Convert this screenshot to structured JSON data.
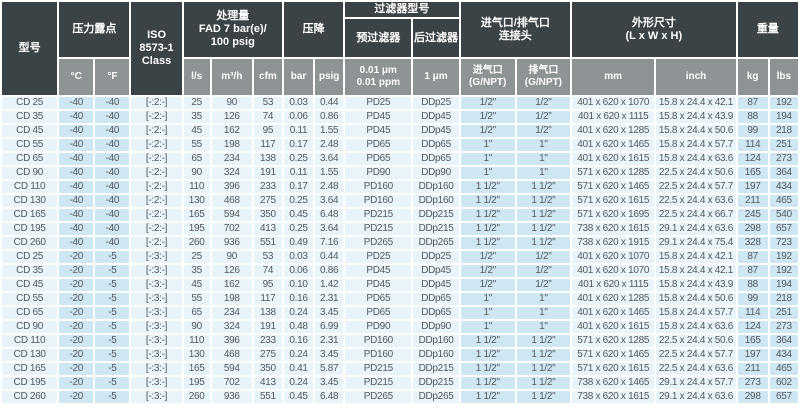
{
  "header": {
    "model": "型号",
    "dew_point": {
      "title": "压力露点",
      "c": "°C",
      "f": "°F"
    },
    "iso_class": "ISO\n8573-1\nClass",
    "capacity": {
      "title": "处理量\nFAD 7 bar(e)/\n100 psig",
      "ls": "l/s",
      "m3h": "m³/h",
      "cfm": "cfm"
    },
    "pressure_drop": {
      "title": "压降",
      "bar": "bar",
      "psig": "psig"
    },
    "filter": {
      "title": "过滤器型号",
      "pre": "预过滤器",
      "after": "后过滤器",
      "pre_spec": "0.01 μm\n0.01 ppm",
      "after_spec": "1 μm"
    },
    "connections": {
      "title": "进气口/排气口\n连接头",
      "inlet": "进气口\n(G/NPT)",
      "outlet": "排气口\n(G/NPT)"
    },
    "dimensions": {
      "title": "外形尺寸\n(L x W x H)",
      "mm": "mm",
      "inch": "inch"
    },
    "weight": {
      "title": "重量",
      "kg": "kg",
      "lbs": "lbs"
    }
  },
  "column_keys": [
    "model",
    "dew-c",
    "dew-f",
    "iso-class",
    "ls",
    "m3h",
    "cfm",
    "bar",
    "psig",
    "prefilter",
    "afterfilter",
    "inlet",
    "outlet",
    "mm",
    "inch",
    "kg",
    "lbs"
  ],
  "colors": {
    "header_dark": "#3b4347",
    "header_gray": "#8e9396",
    "cell_pale": "#e8f3fa",
    "cell_blue": "#cfe7f2",
    "body_text": "#55595c"
  },
  "rows": [
    [
      "CD 25",
      "-40",
      "-40",
      "[-:2:-]",
      "25",
      "90",
      "53",
      "0.03",
      "0.44",
      "PD25",
      "DDp25",
      "1/2\"",
      "1/2\"",
      "401 x 620 x 1070",
      "15.8 x 24.4 x 42.1",
      "87",
      "192"
    ],
    [
      "CD 35",
      "-40",
      "-40",
      "[-:2:-]",
      "35",
      "126",
      "74",
      "0.06",
      "0.86",
      "PD45",
      "DDp45",
      "1/2\"",
      "1/2\"",
      "401 x 620 x 1115",
      "15.8 x 24.4 x 43.9",
      "88",
      "194"
    ],
    [
      "CD 45",
      "-40",
      "-40",
      "[-:2:-]",
      "45",
      "162",
      "95",
      "0.11",
      "1.55",
      "PD45",
      "DDp45",
      "1/2\"",
      "1/2\"",
      "401 x 620 x 1285",
      "15.8 x 24.4 x 50.6",
      "99",
      "218"
    ],
    [
      "CD 55",
      "-40",
      "-40",
      "[-:2:-]",
      "55",
      "198",
      "117",
      "0.17",
      "2.48",
      "PD65",
      "DDp65",
      "1\"",
      "1\"",
      "401 x 620 x 1465",
      "15.8 x 24.4 x 57.7",
      "114",
      "251"
    ],
    [
      "CD 65",
      "-40",
      "-40",
      "[-:2:-]",
      "65",
      "234",
      "138",
      "0.25",
      "3.64",
      "PD65",
      "DDp65",
      "1\"",
      "1\"",
      "401 x 620 x 1615",
      "15.8 x 24.4 x 63.6",
      "124",
      "273"
    ],
    [
      "CD 90",
      "-40",
      "-40",
      "[-:2:-]",
      "90",
      "324",
      "191",
      "0.11",
      "1.55",
      "PD90",
      "DDp90",
      "1\"",
      "1\"",
      "571 x 620 x 1285",
      "22.5 x 24.4 x 50.6",
      "165",
      "364"
    ],
    [
      "CD 110",
      "-40",
      "-40",
      "[-:2:-]",
      "110",
      "396",
      "233",
      "0.17",
      "2.48",
      "PD160",
      "DDp160",
      "1 1/2\"",
      "1 1/2\"",
      "571 x 620 x 1465",
      "22.5 x 24.4 x 57.7",
      "197",
      "434"
    ],
    [
      "CD 130",
      "-40",
      "-40",
      "[-:2:-]",
      "130",
      "468",
      "275",
      "0.25",
      "3.64",
      "PD160",
      "DDp160",
      "1 1/2\"",
      "1 1/2\"",
      "571 x 620 x 1615",
      "22.5 x 24.4 x 63.6",
      "211",
      "465"
    ],
    [
      "CD 165",
      "-40",
      "-40",
      "[-:2:-]",
      "165",
      "594",
      "350",
      "0.45",
      "6.48",
      "PD215",
      "DDp215",
      "1 1/2\"",
      "1 1/2\"",
      "571 x 620 x 1695",
      "22.5 x 24.4 x 66.7",
      "245",
      "540"
    ],
    [
      "CD 195",
      "-40",
      "-40",
      "[-:2:-]",
      "195",
      "702",
      "413",
      "0.25",
      "3.64",
      "PD215",
      "DDp215",
      "1 1/2\"",
      "1 1/2\"",
      "738 x 620 x 1615",
      "29.1 x 24.4 x 63.6",
      "298",
      "657"
    ],
    [
      "CD 260",
      "-40",
      "-40",
      "[-:2:-]",
      "260",
      "936",
      "551",
      "0.49",
      "7.16",
      "PD265",
      "DDp265",
      "1 1/2\"",
      "1 1/2\"",
      "738 x 620 x 1915",
      "29.1 x 24.4 x 75.4",
      "328",
      "723"
    ],
    [
      "CD 25",
      "-20",
      "-5",
      "[-:3:-]",
      "25",
      "90",
      "53",
      "0.03",
      "0.44",
      "PD25",
      "DDp25",
      "1/2\"",
      "1/2\"",
      "401 x 620 x 1070",
      "15.8 x 24.4 x 42.1",
      "87",
      "192"
    ],
    [
      "CD 35",
      "-20",
      "-5",
      "[-:3:-]",
      "35",
      "126",
      "74",
      "0.06",
      "0.86",
      "PD45",
      "DDp45",
      "1/2\"",
      "1/2\"",
      "401 x 620 x 1070",
      "15.8 x 24.4 x 42.1",
      "87",
      "192"
    ],
    [
      "CD 45",
      "-20",
      "-5",
      "[-:3:-]",
      "45",
      "162",
      "95",
      "0.10",
      "1.42",
      "PD45",
      "DDp45",
      "1/2\"",
      "1/2\"",
      "401 x 620 x 1115",
      "15.8 x 24.4 x 43.9",
      "88",
      "194"
    ],
    [
      "CD 55",
      "-20",
      "-5",
      "[-:3:-]",
      "55",
      "198",
      "117",
      "0.16",
      "2.31",
      "PD65",
      "DDp65",
      "1\"",
      "1\"",
      "401 x 620 x 1285",
      "15.8 x 24.4 x 50.6",
      "99",
      "218"
    ],
    [
      "CD 65",
      "-20",
      "-5",
      "[-:3:-]",
      "65",
      "234",
      "138",
      "0.24",
      "3.45",
      "PD65",
      "DDp65",
      "1\"",
      "1\"",
      "401 x 620 x 1465",
      "15.8 x 24.4 x 57.7",
      "114",
      "251"
    ],
    [
      "CD 90",
      "-20",
      "-5",
      "[-:3:-]",
      "90",
      "324",
      "191",
      "0.48",
      "6.99",
      "PD90",
      "DDp90",
      "1\"",
      "1\"",
      "401 x 620 x 1615",
      "15.8 x 24.4 x 63.6",
      "124",
      "273"
    ],
    [
      "CD 110",
      "-20",
      "-5",
      "[-:3:-]",
      "110",
      "396",
      "233",
      "0.16",
      "2.31",
      "PD160",
      "DDp160",
      "1 1/2\"",
      "1 1/2\"",
      "571 x 620 x 1285",
      "22.5 x 24.4 x 50.6",
      "165",
      "364"
    ],
    [
      "CD 130",
      "-20",
      "-5",
      "[-:3:-]",
      "130",
      "468",
      "275",
      "0.24",
      "3.45",
      "PD160",
      "DDp160",
      "1 1/2\"",
      "1 1/2\"",
      "571 x 620 x 1465",
      "22.5 x 24.4 x 57.7",
      "197",
      "434"
    ],
    [
      "CD 165",
      "-20",
      "-5",
      "[-:3:-]",
      "165",
      "594",
      "350",
      "0.41",
      "5.87",
      "PD215",
      "DDp215",
      "1 1/2\"",
      "1 1/2\"",
      "571 x 620 x 1615",
      "22.5 x 24.4 x 63.6",
      "211",
      "465"
    ],
    [
      "CD 195",
      "-20",
      "-5",
      "[-:3:-]",
      "195",
      "702",
      "413",
      "0.24",
      "3.45",
      "PD215",
      "DDp215",
      "1 1/2\"",
      "1 1/2\"",
      "738 x 620 x 1465",
      "29.1 x 24.4 x 57.7",
      "273",
      "602"
    ],
    [
      "CD 260",
      "-20",
      "-5",
      "[-:3:-]",
      "260",
      "936",
      "551",
      "0.45",
      "6.48",
      "PD265",
      "DDp265",
      "1 1/2\"",
      "1 1/2\"",
      "738 x 620 x 1615",
      "29.1 x 24.4 x 63.6",
      "298",
      "657"
    ]
  ],
  "blue_columns": [
    1,
    2,
    11,
    12,
    15,
    16
  ]
}
